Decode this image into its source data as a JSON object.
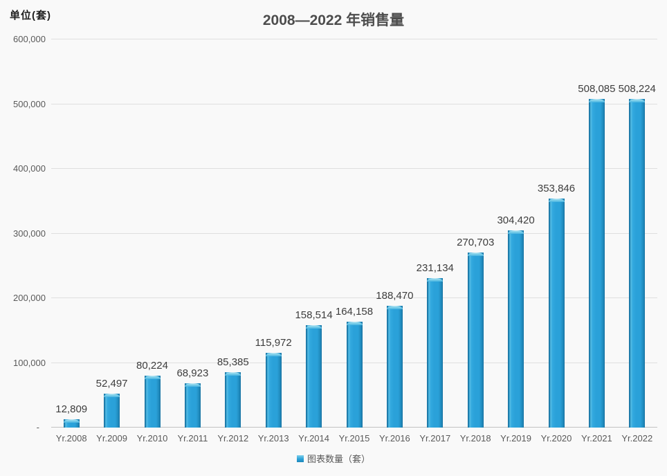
{
  "page": {
    "background": "#f9f9f9"
  },
  "chart": {
    "unit_label": "单位(套)",
    "title": "2008—2022 年销售量",
    "legend_label": "图表数量（套）"
  },
  "chart_data": {
    "type": "bar",
    "title": "2008—2022 年销售量",
    "ylabel": "单位(套)",
    "categories": [
      "Yr.2008",
      "Yr.2009",
      "Yr.2010",
      "Yr.2011",
      "Yr.2012",
      "Yr.2013",
      "Yr.2014",
      "Yr.2015",
      "Yr.2016",
      "Yr.2017",
      "Yr.2018",
      "Yr.2019",
      "Yr.2020",
      "Yr.2021",
      "Yr.2022"
    ],
    "series": [
      {
        "name": "图表数量（套）",
        "values": [
          12809,
          52497,
          80224,
          68923,
          85385,
          115972,
          158514,
          164158,
          188470,
          231134,
          270703,
          304420,
          353846,
          508085,
          508224
        ]
      }
    ],
    "data_labels": [
      "12,809",
      "52,497",
      "80,224",
      "68,923",
      "85,385",
      "115,972",
      "158,514",
      "164,158",
      "188,470",
      "231,134",
      "270,703",
      "304,420",
      "353,846",
      "508,085",
      "508,224"
    ],
    "ylim": [
      0,
      600000
    ],
    "yticks": [
      0,
      100000,
      200000,
      300000,
      400000,
      500000,
      600000
    ],
    "ytick_labels": [
      "-",
      "100,000",
      "200,000",
      "300,000",
      "400,000",
      "500,000",
      "600,000"
    ],
    "grid": "horizontal",
    "legend_position": "bottom",
    "bar_color": "#2aa1d9"
  }
}
